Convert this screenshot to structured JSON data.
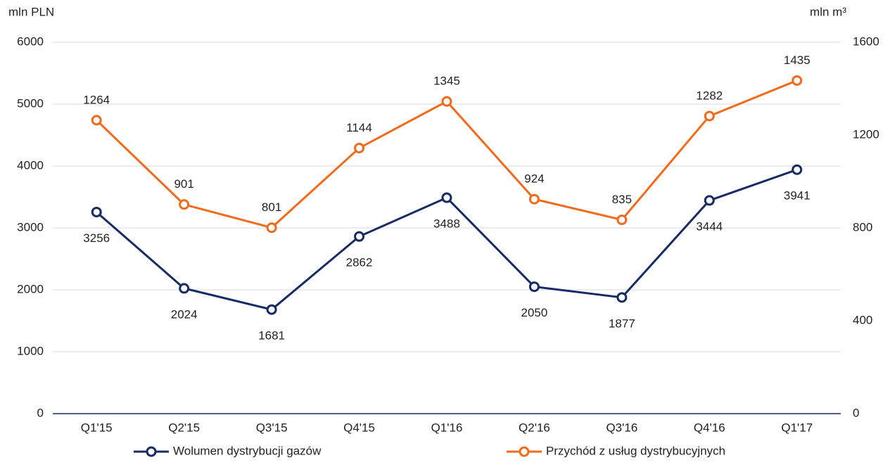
{
  "chart_data": {
    "type": "line",
    "y_label": "mln PLN",
    "y2_label": "mln m³",
    "categories": [
      "Q1'15",
      "Q2'15",
      "Q3'15",
      "Q4'15",
      "Q1'16",
      "Q2'16",
      "Q3'16",
      "Q4'16",
      "Q1'17"
    ],
    "series": [
      {
        "name": "Wolumen dystrybucji gazów",
        "color": "#172b65",
        "values": [
          3256,
          2024,
          1681,
          2862,
          3488,
          2050,
          1877,
          3444,
          3941
        ]
      },
      {
        "name": "Przychód z usług dystrybucyjnych",
        "color": "#f26b1d",
        "axis": "y2",
        "values": [
          1264,
          901,
          801,
          1144,
          1345,
          924,
          835,
          1282,
          1435
        ]
      }
    ],
    "ylim": [
      0,
      6000
    ],
    "yticks": [
      0,
      1000,
      2000,
      3000,
      4000,
      5000,
      6000
    ],
    "y2lim": [
      0,
      1600
    ],
    "y2ticks": [
      0,
      400,
      800,
      1200,
      1600
    ],
    "grid": true,
    "legend": "bottom"
  }
}
